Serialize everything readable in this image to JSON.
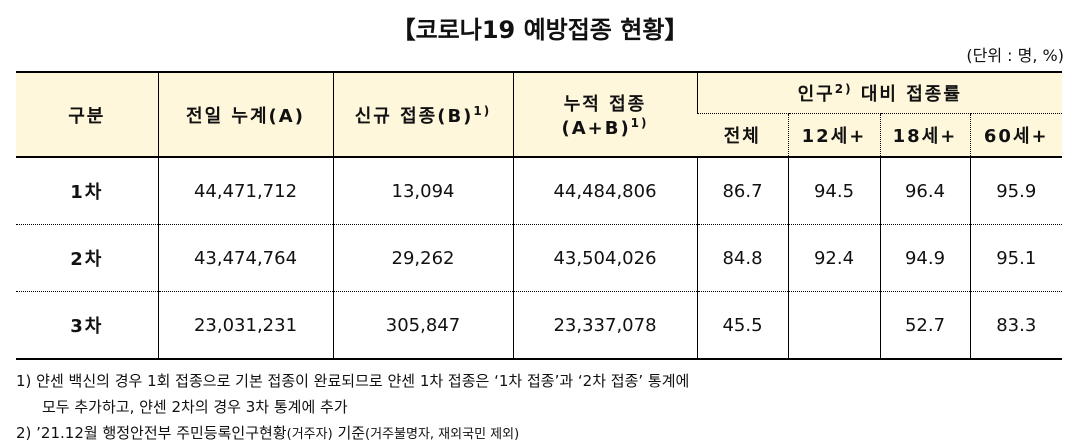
{
  "title": "【코로나19 예방접종 현황】",
  "unit": "(단위 : 명, %)",
  "table": {
    "headers": {
      "category": "구분",
      "prev": {
        "text": "전일 누계(A)"
      },
      "new": {
        "text": "신규 접종(B)",
        "sup": "1)"
      },
      "cum": {
        "lines": [
          "누적 접종",
          "(A+B)"
        ],
        "sup": "1)"
      },
      "rate": {
        "before": "인구",
        "sup": "2)",
        "after": "대비 접종률"
      },
      "rate_cols": [
        "전체",
        "12세+",
        "18세+",
        "60세+"
      ]
    },
    "rows": [
      {
        "label": "1차",
        "values": [
          "44,471,712",
          "13,094",
          "44,484,806",
          "86.7",
          "94.5",
          "96.4",
          "95.9"
        ]
      },
      {
        "label": "2차",
        "values": [
          "43,474,764",
          "29,262",
          "43,504,026",
          "84.8",
          "92.4",
          "94.9",
          "95.1"
        ]
      },
      {
        "label": "3차",
        "values": [
          "23,031,231",
          "305,847",
          "23,337,078",
          "45.5",
          null,
          "52.7",
          "83.3"
        ]
      }
    ]
  },
  "notes": [
    {
      "lines": [
        "1) 얀센 백신의 경우 1회 접종으로 기본 접종이 완료되므로 얀센 1차 접종은 ‘1차 접종’과 ‘2차 접종’ 통계에",
        "모두 추가하고, 얀센 2차의 경우 3차 통계에 추가"
      ]
    },
    {
      "parts": [
        "2) ’21.12월 행정안전부 주민등록인구현황",
        "(거주자)",
        "기준",
        "(거주불명자, 재외국민 제외)"
      ]
    }
  ]
}
